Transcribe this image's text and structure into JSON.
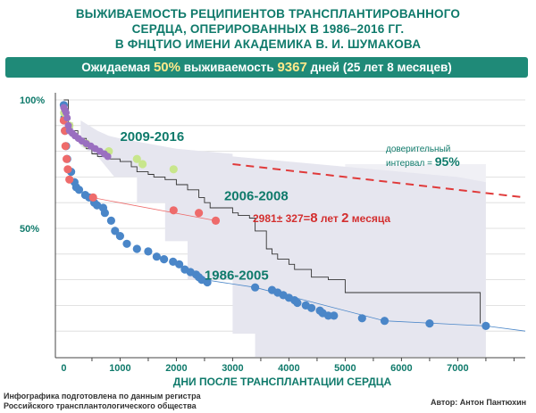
{
  "header": {
    "title_lines": [
      "ВЫЖИВАЕМОСТЬ РЕЦИПИЕНТОВ ТРАНСПЛАНТИРОВАННОГО",
      "СЕРДЦА, ОПЕРИРОВАННЫХ В 1986–2016 ГГ.",
      "В ФНЦТИО ИМЕНИ АКАДЕМИКА В. И. ШУМАКОВА"
    ]
  },
  "banner": {
    "prefix": "Ожидаемая ",
    "percent": "50%",
    "middle": " выживаемость ",
    "days": "9367",
    "suffix": " дней (25 лет 8 месяцев)"
  },
  "chart_data": {
    "type": "scatter",
    "xlabel": "ДНИ ПОСЛЕ ТРАНСПЛАНТАЦИИ СЕРДЦА",
    "ylabel": "",
    "x_ticks": [
      "0",
      "1000",
      "2000",
      "3000",
      "4000",
      "5000",
      "6000",
      "7000"
    ],
    "x_tick_values": [
      0,
      1000,
      2000,
      3000,
      4000,
      5000,
      6000,
      7000
    ],
    "y_ticks": [
      "100%",
      "50%"
    ],
    "y_tick_values": [
      100,
      50
    ],
    "xlim": [
      -150,
      8200
    ],
    "ylim": [
      0,
      100
    ],
    "ci_label": "доверительный",
    "ci_label2": "интервал = ",
    "ci_value": "95%",
    "median_label": {
      "a": "2981",
      "pm": "±",
      "b": " 327",
      "eq": "=",
      "n1": "8",
      "w1": " лет ",
      "n2": "2",
      "w2": " месяца"
    },
    "colors": {
      "s1986": "#4a86c8",
      "s2006": "#ee6b6b",
      "s2009": "#c8e68c",
      "s2016": "#9a6fc0",
      "band": "#e6e6ef",
      "band_light": "#f0f0f5",
      "km": "#333333",
      "expected": "#e03a3a",
      "red_thin": "#ee6b6b",
      "blue_thin": "#4a86c8"
    },
    "series": [
      {
        "name": "1986-2005",
        "label_x": 2500,
        "label_y": 30,
        "points": [
          [
            0,
            98
          ],
          [
            10,
            93
          ],
          [
            20,
            88
          ],
          [
            40,
            82
          ],
          [
            60,
            77
          ],
          [
            130,
            72
          ],
          [
            190,
            68
          ],
          [
            220,
            66
          ],
          [
            270,
            65
          ],
          [
            380,
            63
          ],
          [
            450,
            62
          ],
          [
            540,
            60
          ],
          [
            590,
            59
          ],
          [
            700,
            58
          ],
          [
            730,
            56
          ],
          [
            840,
            53
          ],
          [
            910,
            49
          ],
          [
            1000,
            47
          ],
          [
            1120,
            44
          ],
          [
            1300,
            42
          ],
          [
            1500,
            41
          ],
          [
            1650,
            39
          ],
          [
            1780,
            38
          ],
          [
            1940,
            37
          ],
          [
            2050,
            36
          ],
          [
            2150,
            34
          ],
          [
            2250,
            33
          ],
          [
            2350,
            32
          ],
          [
            2400,
            31
          ],
          [
            2450,
            30
          ],
          [
            2550,
            29
          ],
          [
            3400,
            27
          ],
          [
            3700,
            26
          ],
          [
            3800,
            25
          ],
          [
            3900,
            24
          ],
          [
            4000,
            23
          ],
          [
            4100,
            22
          ],
          [
            4150,
            21
          ],
          [
            4300,
            20
          ],
          [
            4400,
            19
          ],
          [
            4550,
            18
          ],
          [
            4600,
            17
          ],
          [
            4700,
            16
          ],
          [
            4800,
            16
          ],
          [
            5300,
            15
          ],
          [
            5700,
            14
          ],
          [
            6500,
            13
          ],
          [
            7500,
            12
          ]
        ]
      },
      {
        "name": "2006-2008",
        "label_x": 2850,
        "label_y": 61,
        "points": [
          [
            0,
            92
          ],
          [
            20,
            88
          ],
          [
            30,
            82
          ],
          [
            50,
            77
          ],
          [
            70,
            73
          ],
          [
            100,
            69
          ],
          [
            520,
            62
          ],
          [
            1950,
            57
          ],
          [
            2400,
            56
          ],
          [
            2700,
            53
          ]
        ]
      },
      {
        "name": "2009-2016",
        "label_x": 1000,
        "label_y": 84,
        "points": [
          [
            5,
            95
          ],
          [
            100,
            90
          ],
          [
            400,
            83
          ],
          [
            800,
            80
          ],
          [
            1300,
            77
          ],
          [
            1400,
            75
          ],
          [
            1950,
            73
          ]
        ]
      },
      {
        "name": "",
        "points": [
          [
            0,
            97
          ],
          [
            20,
            96
          ],
          [
            40,
            95
          ],
          [
            60,
            93
          ],
          [
            80,
            90
          ],
          [
            100,
            88
          ],
          [
            150,
            87
          ],
          [
            200,
            86
          ],
          [
            260,
            85
          ],
          [
            320,
            84
          ],
          [
            400,
            83
          ],
          [
            480,
            82
          ],
          [
            560,
            81
          ],
          [
            640,
            80
          ],
          [
            720,
            79
          ],
          [
            780,
            78
          ]
        ]
      }
    ],
    "expected_line": [
      [
        3000,
        75
      ],
      [
        8200,
        62
      ]
    ],
    "km_curve": [
      [
        0,
        100
      ],
      [
        80,
        91
      ],
      [
        150,
        88
      ],
      [
        250,
        85
      ],
      [
        400,
        81
      ],
      [
        500,
        79
      ],
      [
        600,
        78
      ],
      [
        800,
        77
      ],
      [
        1000,
        76
      ],
      [
        1200,
        74
      ],
      [
        1300,
        72
      ],
      [
        1500,
        71
      ],
      [
        1600,
        70
      ],
      [
        1800,
        69
      ],
      [
        2000,
        67
      ],
      [
        2200,
        65
      ],
      [
        2400,
        62
      ],
      [
        2500,
        60
      ],
      [
        2600,
        58
      ],
      [
        3000,
        56
      ],
      [
        3100,
        55
      ],
      [
        3300,
        54
      ],
      [
        3400,
        49
      ],
      [
        3600,
        42
      ],
      [
        3700,
        40
      ],
      [
        3800,
        38
      ],
      [
        4000,
        36
      ],
      [
        4100,
        34
      ],
      [
        4400,
        31
      ],
      [
        4700,
        30
      ],
      [
        5000,
        25
      ],
      [
        5100,
        25
      ],
      [
        7400,
        21
      ],
      [
        7400,
        13
      ]
    ],
    "band_upper": [
      [
        300,
        92
      ],
      [
        600,
        88
      ],
      [
        800,
        86
      ],
      [
        1000,
        85
      ],
      [
        1500,
        83
      ],
      [
        2000,
        81
      ],
      [
        2500,
        80
      ],
      [
        3000,
        79
      ],
      [
        3000,
        78
      ],
      [
        4000,
        76
      ],
      [
        4500,
        75
      ],
      [
        5000,
        74
      ],
      [
        5500,
        73
      ],
      [
        6000,
        72
      ],
      [
        7000,
        70
      ],
      [
        7500,
        68
      ]
    ],
    "band_lower": [
      [
        7500,
        0
      ],
      [
        3400,
        0
      ],
      [
        3400,
        9
      ],
      [
        3000,
        9
      ],
      [
        3000,
        30
      ],
      [
        2200,
        30
      ],
      [
        2200,
        45
      ],
      [
        1800,
        45
      ],
      [
        1800,
        60
      ],
      [
        1300,
        60
      ],
      [
        1300,
        70
      ],
      [
        900,
        70
      ],
      [
        600,
        78
      ],
      [
        300,
        82
      ]
    ],
    "band2_upper": [
      [
        3400,
        55
      ],
      [
        5000,
        55
      ],
      [
        5000,
        75
      ],
      [
        7500,
        75
      ]
    ],
    "band2_lower": [
      [
        7500,
        0
      ],
      [
        3400,
        0
      ]
    ],
    "red_thin_line": [
      [
        500,
        62
      ],
      [
        2700,
        53
      ]
    ],
    "blue_thin_line": [
      [
        2500,
        30
      ],
      [
        3400,
        27
      ],
      [
        5700,
        14
      ],
      [
        7500,
        12
      ],
      [
        8200,
        10
      ]
    ]
  },
  "xaxis": {
    "label": "ДНИ ПОСЛЕ ТРАНСПЛАНТАЦИИ СЕРДЦА"
  },
  "footer": {
    "credit_line1": "Инфографика подготовлена по данным регистра",
    "credit_line2": "Российского трансплантологического общества",
    "author": "Автор: Антон Пантюхин"
  }
}
